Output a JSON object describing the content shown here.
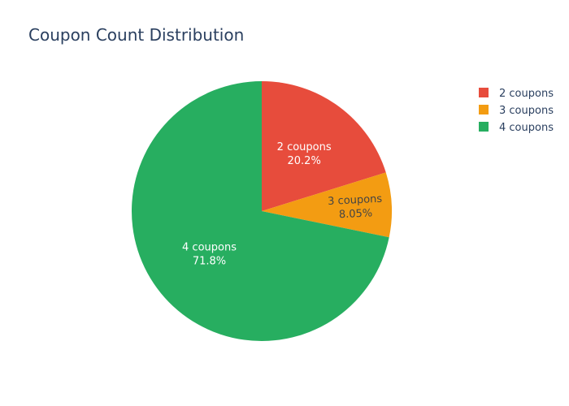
{
  "chart_data": {
    "type": "pie",
    "title": "Coupon Count Distribution",
    "labels": [
      "2 coupons",
      "3 coupons",
      "4 coupons"
    ],
    "values": [
      20.2,
      8.05,
      71.8
    ],
    "percent_labels": [
      "20.2%",
      "8.05%",
      "71.8%"
    ],
    "colors": [
      "#e74c3c",
      "#f39c12",
      "#27ae60"
    ],
    "legend_position": "top-right"
  }
}
